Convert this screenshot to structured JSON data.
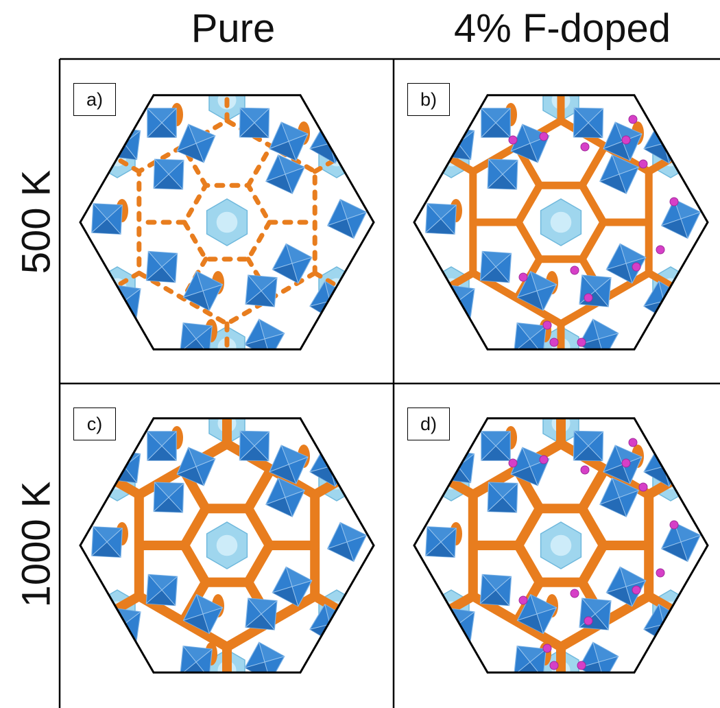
{
  "columns": [
    "Pure",
    "4% F-doped"
  ],
  "rows": [
    "500 K",
    "1000 K"
  ],
  "panels": [
    {
      "label": "a)",
      "temperature": "500 K",
      "composition": "Pure",
      "channel_network": "fragmented",
      "fluorine_dopants": false
    },
    {
      "label": "b)",
      "temperature": "500 K",
      "composition": "4% F-doped",
      "channel_network": "partially connected",
      "fluorine_dopants": true
    },
    {
      "label": "c)",
      "temperature": "1000 K",
      "composition": "Pure",
      "channel_network": "connected",
      "fluorine_dopants": false
    },
    {
      "label": "d)",
      "temperature": "1000 K",
      "composition": "4% F-doped",
      "channel_network": "connected",
      "fluorine_dopants": true
    }
  ],
  "colors": {
    "density": "#e87d1e",
    "polyhedra": "#2f7fd0",
    "polyhedra_light": "#9fd6ee",
    "dopant": "#d63fc7",
    "frame": "#000000"
  }
}
